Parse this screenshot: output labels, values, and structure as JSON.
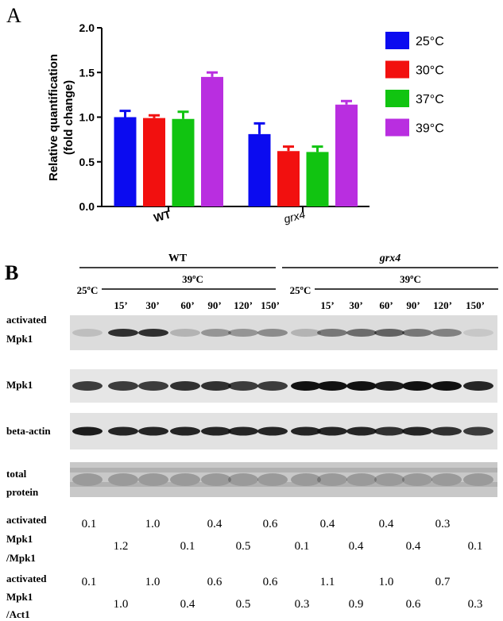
{
  "chart_data": {
    "type": "bar",
    "panel": "A",
    "ylabel": [
      "Relative quantification",
      "(fold change)"
    ],
    "categories": [
      "WT",
      "grx4"
    ],
    "series": [
      {
        "name": "25°C",
        "color": "#0b0bf0",
        "values": [
          1.0,
          0.81
        ],
        "errors": [
          0.07,
          0.12
        ]
      },
      {
        "name": "30°C",
        "color": "#f2100f",
        "values": [
          0.99,
          0.62
        ],
        "errors": [
          0.03,
          0.05
        ]
      },
      {
        "name": "37°C",
        "color": "#11c411",
        "values": [
          0.98,
          0.61
        ],
        "errors": [
          0.08,
          0.06
        ]
      },
      {
        "name": "39°C",
        "color": "#b92ee0",
        "values": [
          1.45,
          1.14
        ],
        "errors": [
          0.05,
          0.04
        ]
      }
    ],
    "ylim": [
      0,
      2
    ],
    "yticks": [
      {
        "value": 0,
        "label": "0.0"
      },
      {
        "value": 0.5,
        "label": "0.5"
      },
      {
        "value": 1,
        "label": "1.0"
      },
      {
        "value": 1.5,
        "label": "1.5"
      },
      {
        "value": 2,
        "label": "2.0"
      }
    ]
  },
  "panel_b": {
    "label": "B",
    "groups": [
      {
        "name": "WT",
        "control": "25ºC",
        "heat": "39ºC",
        "times": [
          "15’",
          "30’",
          "60’",
          "90’",
          "120’",
          "150’"
        ]
      },
      {
        "name": "grx4",
        "control": "25ºC",
        "heat": "39ºC",
        "times": [
          "15’",
          "30’",
          "60’",
          "90’",
          "120’",
          "150’"
        ]
      }
    ],
    "rows": [
      [
        "activated",
        "Mpk1"
      ],
      [
        "Mpk1"
      ],
      [
        "beta-actin"
      ],
      [
        "total",
        "protein"
      ]
    ],
    "ratios": [
      {
        "label": [
          "activated",
          "Mpk1",
          "/Mpk1"
        ],
        "values": [
          "0.1",
          "1.2",
          "1.0",
          "0.1",
          "0.4",
          "0.5",
          "0.6",
          "0.1",
          "0.4",
          "0.4",
          "0.4",
          "0.4",
          "0.3",
          "0.1"
        ]
      },
      {
        "label": [
          "activated",
          "Mpk1",
          "/Act1"
        ],
        "values": [
          "0.1",
          "1.0",
          "1.0",
          "0.4",
          "0.6",
          "0.5",
          "0.6",
          "0.3",
          "1.1",
          "0.9",
          "1.0",
          "0.6",
          "0.7",
          "0.3"
        ]
      }
    ]
  }
}
